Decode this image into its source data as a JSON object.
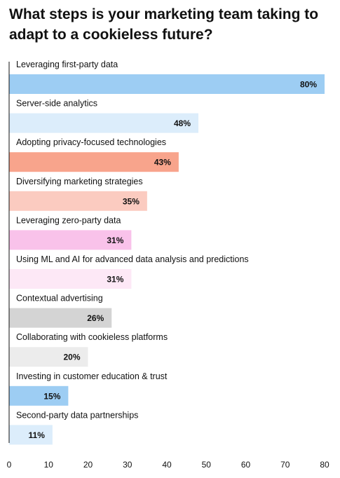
{
  "chart_data": {
    "type": "bar",
    "orientation": "horizontal",
    "title": "What steps is your marketing team taking to adapt to a cookieless future?",
    "categories": [
      "Leveraging first-party data",
      "Server-side analytics",
      "Adopting privacy-focused technologies",
      "Diversifying marketing strategies",
      "Leveraging zero-party data",
      "Using ML and AI for advanced data analysis and predictions",
      "Contextual advertising",
      "Collaborating with cookieless platforms",
      "Investing in customer education & trust",
      "Second-party data partnerships"
    ],
    "values": [
      80,
      48,
      43,
      35,
      31,
      31,
      26,
      20,
      15,
      11
    ],
    "value_labels": [
      "80%",
      "48%",
      "43%",
      "35%",
      "31%",
      "31%",
      "26%",
      "20%",
      "15%",
      "11%"
    ],
    "bar_colors": [
      "#9dcdf3",
      "#dcedfb",
      "#f8a48c",
      "#fbcbc0",
      "#f9c2ea",
      "#fde8f6",
      "#d4d4d4",
      "#ececec",
      "#9dcdf3",
      "#dcedfb"
    ],
    "xlim": [
      0,
      80
    ],
    "xticks": [
      0,
      10,
      20,
      30,
      40,
      50,
      60,
      70,
      80
    ],
    "xlabel": "",
    "ylabel": "",
    "grid": false,
    "legend": "none"
  }
}
